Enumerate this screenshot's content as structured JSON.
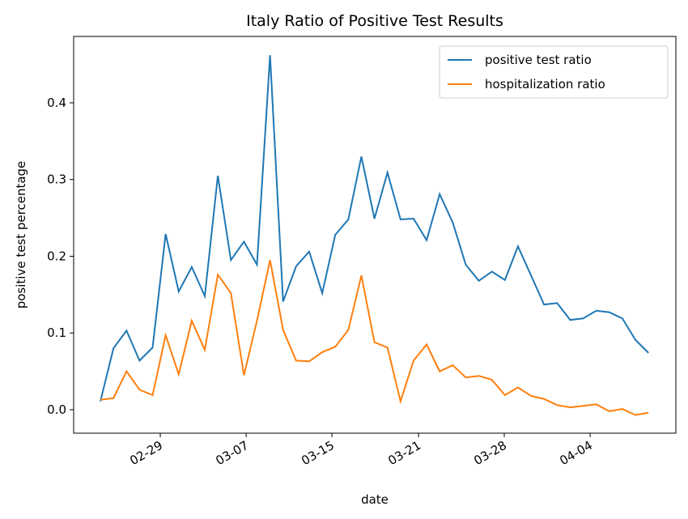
{
  "chart_data": {
    "type": "line",
    "title": "Italy Ratio of Positive Test Results",
    "xlabel": "date",
    "ylabel": "positive test percentage",
    "x": [
      0,
      1,
      2,
      3,
      4,
      5,
      6,
      7,
      8,
      9,
      10,
      11,
      12,
      13,
      14,
      15,
      16,
      17,
      18,
      19,
      20,
      21,
      22,
      23,
      24,
      25,
      26,
      27,
      28,
      29,
      30,
      31,
      32,
      33,
      34,
      35,
      36,
      37,
      38,
      39,
      40,
      41,
      42
    ],
    "series": [
      {
        "name": "positive test ratio",
        "color": "#1f77b4",
        "values": [
          0.011,
          0.08,
          0.103,
          0.064,
          0.081,
          0.229,
          0.154,
          0.186,
          0.148,
          0.305,
          0.195,
          0.219,
          0.189,
          0.462,
          0.141,
          0.187,
          0.206,
          0.152,
          0.228,
          0.248,
          0.33,
          0.249,
          0.309,
          0.248,
          0.249,
          0.221,
          0.281,
          0.244,
          0.189,
          0.168,
          0.18,
          0.169,
          0.213,
          0.175,
          0.137,
          0.139,
          0.117,
          0.119,
          0.129,
          0.127,
          0.119,
          0.091,
          0.074
        ]
      },
      {
        "name": "hospitalization ratio",
        "color": "#ff7f0e",
        "values": [
          0.013,
          0.015,
          0.05,
          0.026,
          0.019,
          0.097,
          0.046,
          0.116,
          0.078,
          0.176,
          0.152,
          0.045,
          0.116,
          0.195,
          0.104,
          0.064,
          0.063,
          0.075,
          0.082,
          0.104,
          0.175,
          0.088,
          0.081,
          0.011,
          0.064,
          0.085,
          0.05,
          0.058,
          0.042,
          0.044,
          0.039,
          0.019,
          0.029,
          0.018,
          0.014,
          0.006,
          0.003,
          0.005,
          0.007,
          -0.002,
          0.001,
          -0.007,
          -0.004
        ]
      }
    ],
    "xlim": [
      -2.05,
      44.1
    ],
    "xticks": [
      {
        "value": 4.59,
        "label": "02-29"
      },
      {
        "value": 11.17,
        "label": "03-07"
      },
      {
        "value": 17.74,
        "label": "03-15"
      },
      {
        "value": 24.38,
        "label": "03-21"
      },
      {
        "value": 30.95,
        "label": "03-28"
      },
      {
        "value": 37.53,
        "label": "04-04"
      }
    ],
    "ylim": [
      -0.0306,
      0.4865
    ],
    "yticks": [
      {
        "value": 0,
        "label": "0.0"
      },
      0.1,
      0.2,
      0.3,
      0.4
    ],
    "legend": "upper right"
  }
}
